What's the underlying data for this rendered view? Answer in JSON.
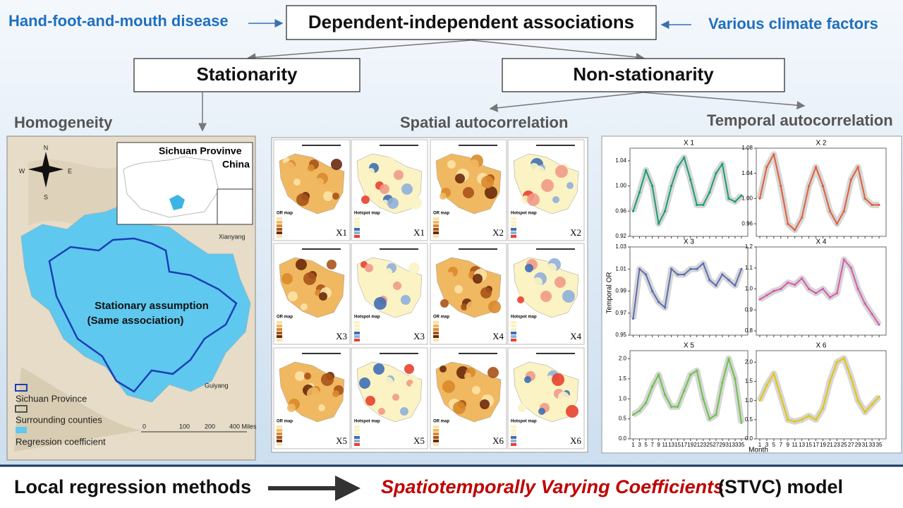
{
  "header": {
    "left": "Hand-foot-and-mouth disease",
    "center": "Dependent-independent associations",
    "right": "Various climate factors",
    "stationarity": "Stationarity",
    "non_stationarity": "Non-stationarity",
    "homogeneity": "Homogeneity",
    "spatial": "Spatial autocorrelation",
    "temporal": "Temporal autocorrelation"
  },
  "map": {
    "inset_title": "Sichuan Provinve",
    "inset_sub": "China",
    "assumption": "Stationary assumption",
    "assumption_sub": "(Same association)",
    "city1": "Xianyang",
    "city2": "Guiyang",
    "legend": [
      "Sichuan Province",
      "Surrounding counties",
      "Regression coefficient"
    ],
    "scale": [
      "0",
      "100",
      "200",
      "400 Miles"
    ],
    "compass": [
      "N",
      "S",
      "W",
      "E"
    ]
  },
  "spatial": {
    "maps": [
      {
        "label": "X1",
        "title": "OR map"
      },
      {
        "label": "X1",
        "title": "Hotspot map"
      },
      {
        "label": "X2",
        "title": "OR map"
      },
      {
        "label": "X2",
        "title": "Hotspot map"
      },
      {
        "label": "X3",
        "title": "OR map"
      },
      {
        "label": "X3",
        "title": "Hotspot map"
      },
      {
        "label": "X4",
        "title": "OR map"
      },
      {
        "label": "X4",
        "title": "Hotspot map"
      },
      {
        "label": "X5",
        "title": "OR map"
      },
      {
        "label": "X5",
        "title": "Hotspot map"
      },
      {
        "label": "X6",
        "title": "OR map"
      },
      {
        "label": "X6",
        "title": "Hotspot map"
      }
    ]
  },
  "temporal": {
    "ylabel": "Temporal OR",
    "xlabel": "Month",
    "xlim": [
      0,
      37
    ],
    "xticks": [
      1,
      3,
      5,
      7,
      9,
      11,
      13,
      15,
      17,
      19,
      21,
      23,
      25,
      27,
      29,
      31,
      33,
      35
    ],
    "panels": [
      {
        "title": "X 1",
        "color": "#1a9e77",
        "ylim": [
          0.92,
          1.06
        ],
        "yticks": [
          0.92,
          0.96,
          {
            "value": 1,
            "label": "1.00"
          },
          1.04
        ],
        "values": [
          0.96,
          0.99,
          1.025,
          1.0,
          0.94,
          0.96,
          1.0,
          1.03,
          1.045,
          1.01,
          0.97,
          0.97,
          0.99,
          1.02,
          1.035,
          0.98,
          0.975,
          0.985
        ]
      },
      {
        "title": "X 2",
        "color": "#e0603a",
        "ylim": [
          0.94,
          1.08
        ],
        "yticks": [
          0.96,
          {
            "value": 1,
            "label": "1.00"
          },
          1.04,
          1.08
        ],
        "values": [
          1.0,
          1.05,
          1.07,
          1.02,
          0.96,
          0.95,
          0.97,
          1.02,
          1.05,
          1.02,
          0.98,
          0.96,
          0.98,
          1.03,
          1.05,
          1.0,
          0.99,
          0.99
        ]
      },
      {
        "title": "X 3",
        "color": "#5b6db5",
        "ylim": [
          0.95,
          1.03
        ],
        "yticks": [
          0.95,
          0.97,
          0.99,
          1.01,
          1.03
        ],
        "values": [
          0.965,
          1.01,
          1.005,
          0.99,
          0.98,
          0.975,
          1.01,
          1.005,
          1.005,
          1.01,
          1.01,
          1.015,
          1.0,
          0.995,
          1.005,
          1.0,
          0.995,
          1.01
        ]
      },
      {
        "title": "X 4",
        "color": "#d85ab0",
        "ylim": [
          0.78,
          1.2
        ],
        "yticks": [
          0.8,
          0.9,
          {
            "value": 1,
            "label": "1.0"
          },
          1.1,
          1.2
        ],
        "values": [
          0.95,
          0.97,
          0.99,
          1.0,
          1.03,
          1.02,
          1.05,
          1.0,
          0.98,
          1.0,
          0.96,
          0.98,
          1.14,
          1.1,
          1.0,
          0.93,
          0.88,
          0.83
        ]
      },
      {
        "title": "X 5",
        "color": "#6cc24a",
        "ylim": [
          0,
          2.2
        ],
        "yticks": [
          {
            "value": 0,
            "label": "0.0"
          },
          0.5,
          {
            "value": 1,
            "label": "1.0"
          },
          1.5,
          {
            "value": 2,
            "label": "2.0"
          }
        ],
        "values": [
          0.6,
          0.7,
          0.9,
          1.3,
          1.6,
          1.1,
          0.8,
          0.8,
          1.2,
          1.6,
          1.7,
          1.0,
          0.5,
          0.6,
          1.4,
          2.0,
          1.5,
          0.4
        ]
      },
      {
        "title": "X 6",
        "color": "#e6c400",
        "ylim": [
          0,
          2.3
        ],
        "yticks": [
          {
            "value": 0,
            "label": "0.0"
          },
          0.5,
          {
            "value": 1,
            "label": "1.0"
          },
          1.5,
          {
            "value": 2,
            "label": "2.0"
          }
        ],
        "values": [
          1.0,
          1.4,
          1.7,
          1.1,
          0.5,
          0.45,
          0.5,
          0.6,
          0.5,
          0.8,
          1.5,
          2.0,
          2.1,
          1.6,
          1.0,
          0.7,
          0.9,
          1.1
        ]
      }
    ]
  },
  "footer": {
    "left": "Local regression methods",
    "model": "Spatiotemporally Varying Coefficients",
    "suffix": "(STVC) model"
  }
}
